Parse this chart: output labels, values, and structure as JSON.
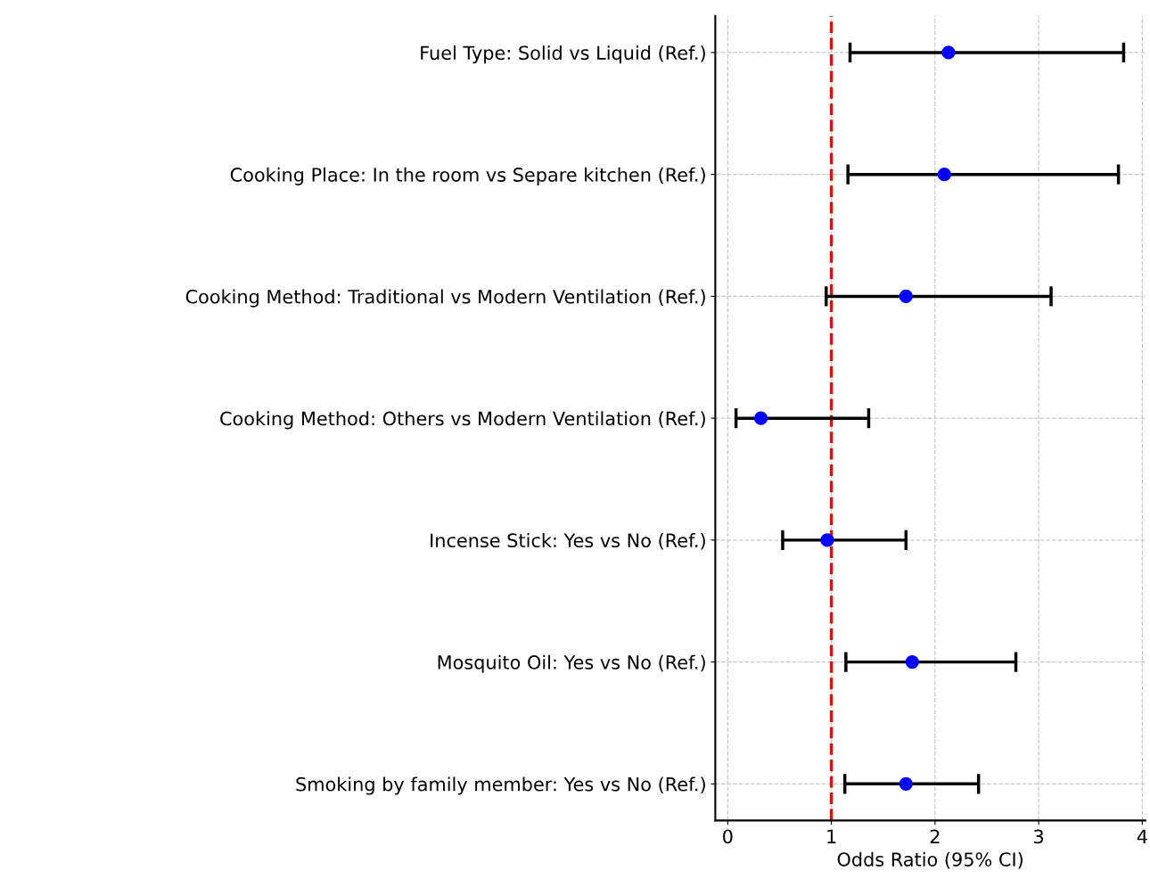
{
  "chart_data": {
    "type": "scatter",
    "orientation": "horizontal",
    "xlabel": "Odds Ratio (95% CI)",
    "categories": [
      "Fuel Type: Solid vs Liquid (Ref.)",
      "Cooking Place: In the room vs Separe kitchen (Ref.)",
      "Cooking Method: Traditional vs Modern Ventilation (Ref.)",
      "Cooking Method: Others vs Modern Ventilation (Ref.)",
      "Incense Stick: Yes vs No (Ref.)",
      "Mosquito Oil: Yes vs No (Ref.)",
      "Smoking by family member: Yes vs No (Ref.)"
    ],
    "series": [
      {
        "color": "#0000ff",
        "values": [
          2.13,
          2.09,
          1.72,
          0.32,
          0.96,
          1.78,
          1.72
        ],
        "errors": [
          [
            1.18,
            3.82
          ],
          [
            1.16,
            3.77
          ],
          [
            0.95,
            3.12
          ],
          [
            0.08,
            1.36
          ],
          [
            0.53,
            1.72
          ],
          [
            1.14,
            2.78
          ],
          [
            1.13,
            2.42
          ]
        ]
      }
    ],
    "marker": "circle",
    "xlim": [
      -0.12,
      4.03
    ],
    "xticks": [
      0,
      1,
      2,
      3,
      4
    ],
    "grid": true,
    "ref_lines": [
      {
        "axis": "x",
        "value": 1,
        "color": "#ff0000",
        "line_style": "dashed"
      }
    ]
  }
}
